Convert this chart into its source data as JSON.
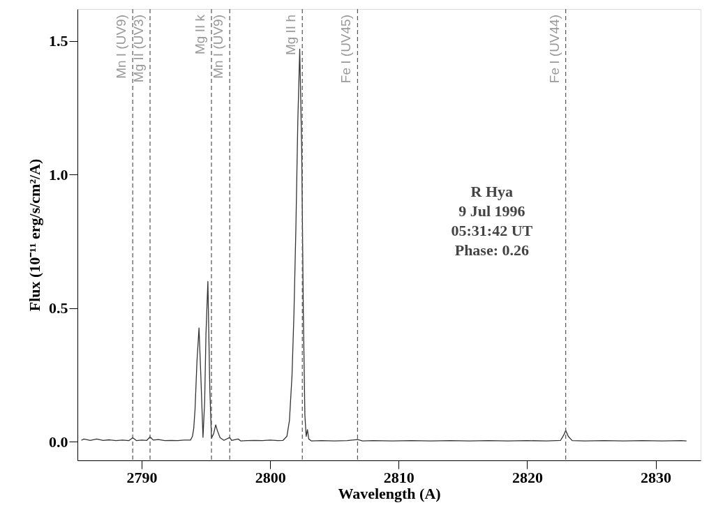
{
  "chart_data": {
    "type": "line",
    "xlabel": "Wavelength (A)",
    "ylabel": "Flux (10⁻¹¹ erg/s/cm²/A)",
    "xlim": [
      2785.0,
      2833.5
    ],
    "ylim": [
      -0.07,
      1.62
    ],
    "xticks": [
      2790,
      2800,
      2810,
      2820,
      2830
    ],
    "yticks": [
      {
        "value": 0,
        "label": "0.0"
      },
      {
        "value": 0.5,
        "label": "0.5"
      },
      {
        "value": 1.0,
        "label": "1.0"
      },
      {
        "value": 1.5,
        "label": "1.5"
      }
    ],
    "grid": false,
    "marker": "none",
    "line_style": "solid",
    "series": [
      {
        "color": "#333333",
        "x": [
          2785.3,
          2785.5,
          2786.0,
          2786.5,
          2787.0,
          2787.5,
          2788.0,
          2788.5,
          2789.0,
          2789.3,
          2789.6,
          2790.0,
          2790.4,
          2790.65,
          2790.9,
          2791.3,
          2791.8,
          2792.3,
          2792.8,
          2793.3,
          2793.8,
          2793.95,
          2794.05,
          2794.15,
          2794.3,
          2794.46,
          2794.6,
          2794.77,
          2794.9,
          2795.0,
          2795.15,
          2795.3,
          2795.43,
          2795.6,
          2795.76,
          2795.9,
          2796.1,
          2796.4,
          2796.85,
          2797.0,
          2797.5,
          2797.7,
          2798.2,
          2798.8,
          2799.4,
          2800.0,
          2800.6,
          2801.0,
          2801.3,
          2801.5,
          2801.7,
          2801.85,
          2802.0,
          2802.15,
          2802.3,
          2802.45,
          2802.58,
          2802.7,
          2802.8,
          2802.9,
          2803.0,
          2803.2,
          2804.0,
          2805.0,
          2806.0,
          2806.8,
          2807.2,
          2808.0,
          2809.5,
          2811.0,
          2812.5,
          2814.0,
          2815.5,
          2817.0,
          2818.5,
          2820.0,
          2821.5,
          2822.6,
          2822.85,
          2823.0,
          2823.2,
          2823.5,
          2824.5,
          2826.0,
          2827.5,
          2829.0,
          2830.5,
          2832.0,
          2832.4
        ],
        "values": [
          0.005,
          0.01,
          0.005,
          0.01,
          0.005,
          0.007,
          0.004,
          0.006,
          0.004,
          0.015,
          0.004,
          0.006,
          0.005,
          0.018,
          0.006,
          0.008,
          0.004,
          0.005,
          0.004,
          0.006,
          0.006,
          0.02,
          0.05,
          0.12,
          0.3,
          0.426,
          0.25,
          0.016,
          0.15,
          0.4,
          0.6,
          0.2,
          0.013,
          0.03,
          0.063,
          0.04,
          0.015,
          0.005,
          0.016,
          0.005,
          0.01,
          0.003,
          0.004,
          0.005,
          0.004,
          0.006,
          0.004,
          0.005,
          0.02,
          0.08,
          0.25,
          0.48,
          0.8,
          1.2,
          1.47,
          1.1,
          0.48,
          0.1,
          0.02,
          0.045,
          0.01,
          0.003,
          0.004,
          0.003,
          0.004,
          0.008,
          0.003,
          0.004,
          0.003,
          0.004,
          0.003,
          0.004,
          0.003,
          0.004,
          0.003,
          0.004,
          0.003,
          0.005,
          0.025,
          0.042,
          0.02,
          0.004,
          0.003,
          0.004,
          0.003,
          0.004,
          0.003,
          0.004,
          0.003
        ]
      }
    ],
    "ref_lines": [
      {
        "axis": "x",
        "value": 2789.3,
        "label": "Mn I (UV9)",
        "color": "#555555",
        "line_style": "dashed"
      },
      {
        "axis": "x",
        "value": 2790.65,
        "label": "Mg II (UV3)",
        "color": "#555555",
        "line_style": "dashed"
      },
      {
        "axis": "x",
        "value": 2795.43,
        "label": "Mg II k",
        "color": "#555555",
        "line_style": "dashed"
      },
      {
        "axis": "x",
        "value": 2796.85,
        "label": "Mn I (UV9)",
        "color": "#555555",
        "line_style": "dashed"
      },
      {
        "axis": "x",
        "value": 2802.5,
        "label": "Mg II h",
        "color": "#555555",
        "line_style": "dashed"
      },
      {
        "axis": "x",
        "value": 2806.8,
        "label": "Fe I (UV45)",
        "color": "#555555",
        "line_style": "dashed"
      },
      {
        "axis": "x",
        "value": 2823.0,
        "label": "Fe I (UV44)",
        "color": "#555555",
        "line_style": "dashed"
      }
    ],
    "annotations": [
      "R Hya",
      "9 Jul 1996",
      "05:31:42 UT",
      "Phase: 0.26"
    ]
  }
}
